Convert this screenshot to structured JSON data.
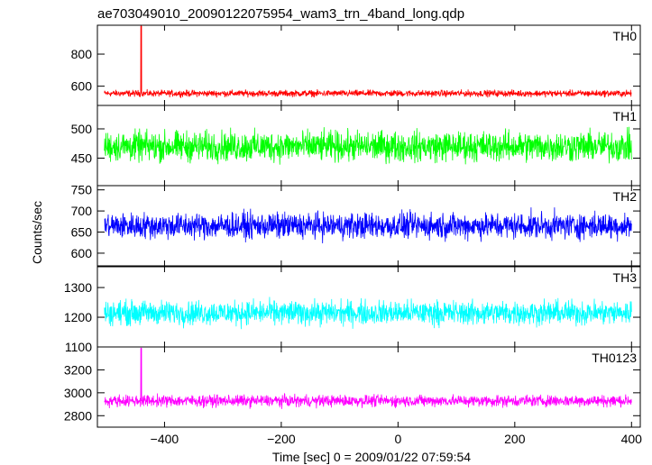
{
  "title": "ae703049010_20090122075954_wam3_trn_4band_long.qdp",
  "ylabel": "Counts/sec",
  "xlabel": "Time [sec] 0 = 2009/01/22 07:59:54",
  "chart_data": {
    "type": "line",
    "title": "ae703049010_20090122075954_wam3_trn_4band_long.qdp",
    "xlabel": "Time [sec] 0 = 2009/01/22 07:59:54",
    "ylabel": "Counts/sec",
    "xlim": [
      -515,
      415
    ],
    "x_data_range": [
      -503,
      400
    ],
    "x_ticks": [
      -400,
      -200,
      0,
      200,
      400
    ],
    "grid": false,
    "panels": [
      {
        "name": "TH0",
        "color": "#ff0000",
        "ylim": [
          480,
          980
        ],
        "y_ticks": [
          600,
          800
        ],
        "baseline": 555,
        "noise": 30,
        "spikes": [
          {
            "x": -440,
            "y": 975
          }
        ]
      },
      {
        "name": "TH1",
        "color": "#00ff00",
        "ylim": [
          403,
          540
        ],
        "y_ticks": [
          450,
          500
        ],
        "baseline": 470,
        "noise": 38,
        "spikes": []
      },
      {
        "name": "TH2",
        "color": "#0000ff",
        "ylim": [
          570,
          760
        ],
        "y_ticks": [
          600,
          650,
          700,
          750
        ],
        "baseline": 665,
        "noise": 45,
        "spikes": []
      },
      {
        "name": "TH3",
        "color": "#00ffff",
        "ylim": [
          1100,
          1370
        ],
        "y_ticks": [
          1100,
          1200,
          1300
        ],
        "baseline": 1215,
        "noise": 60,
        "spikes": []
      },
      {
        "name": "TH0123",
        "color": "#ff00ff",
        "ylim": [
          2700,
          3400
        ],
        "y_ticks": [
          2800,
          3000,
          3200
        ],
        "baseline": 2930,
        "noise": 75,
        "spikes": [
          {
            "x": -440,
            "y": 3390
          }
        ]
      }
    ]
  }
}
